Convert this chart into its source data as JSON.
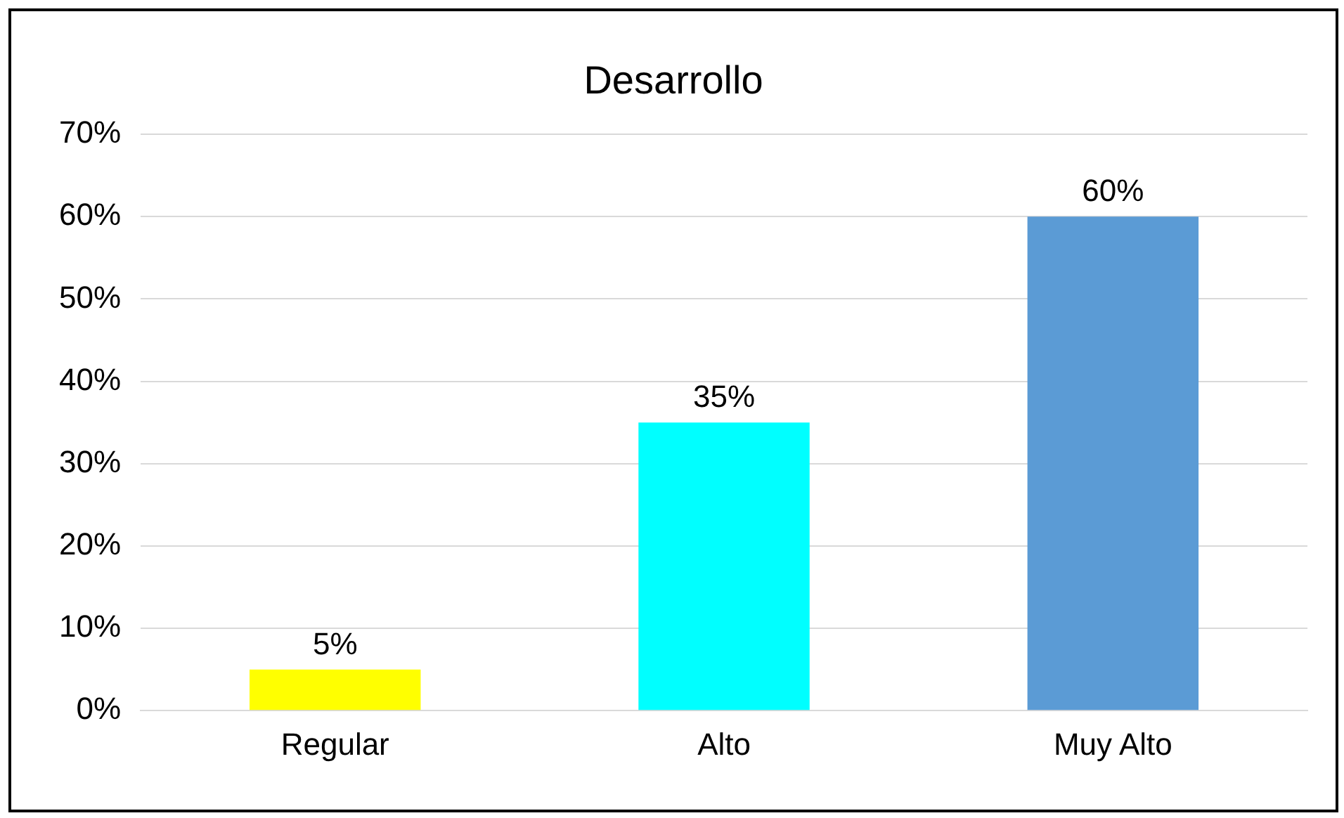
{
  "chart_data": {
    "type": "bar",
    "title": "Desarrollo",
    "categories": [
      "Regular",
      "Alto",
      "Muy Alto"
    ],
    "values": [
      5,
      35,
      60
    ],
    "colors": [
      "#ffff00",
      "#00ffff",
      "#5b9bd5"
    ],
    "value_labels": [
      "5%",
      "35%",
      "60%"
    ],
    "ylim": [
      0,
      70
    ],
    "yticks": [
      {
        "value": 0,
        "label": "0%"
      },
      {
        "value": 10,
        "label": "10%"
      },
      {
        "value": 20,
        "label": "20%"
      },
      {
        "value": 30,
        "label": "30%"
      },
      {
        "value": 40,
        "label": "40%"
      },
      {
        "value": 50,
        "label": "50%"
      },
      {
        "value": 60,
        "label": "60%"
      },
      {
        "value": 70,
        "label": "70%"
      }
    ],
    "grid": "y"
  }
}
